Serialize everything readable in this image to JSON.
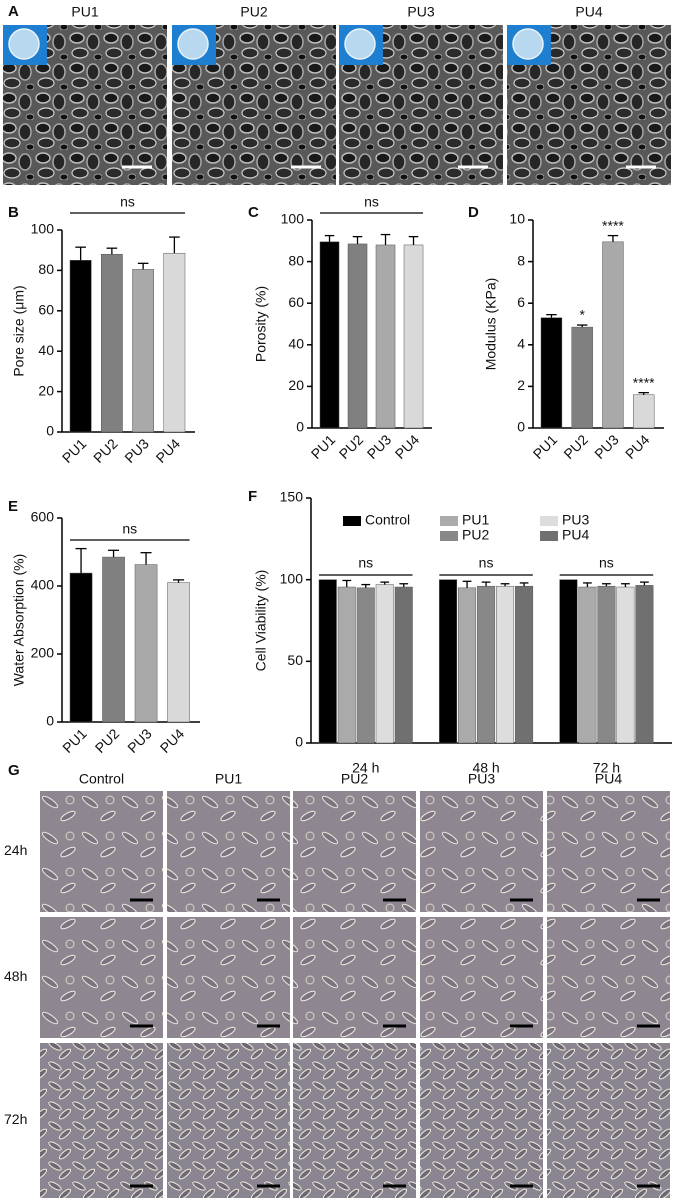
{
  "panel_labels": [
    "A",
    "B",
    "C",
    "D",
    "E",
    "F",
    "G"
  ],
  "sem_images": {
    "titles": [
      "PU1",
      "PU2",
      "PU3",
      "PU4"
    ]
  },
  "chart_data": [
    {
      "type": "bar",
      "ylabel": "Pore size (μm)",
      "categories": [
        "PU1",
        "PU2",
        "PU3",
        "PU4"
      ],
      "values": [
        85,
        88,
        80.5,
        88.5
      ],
      "errors": [
        6.5,
        3,
        3,
        8
      ],
      "colors": [
        "#000000",
        "#808080",
        "#a9a9a9",
        "#d9d9d9"
      ],
      "ylim": [
        0,
        100
      ],
      "yticks": [
        0,
        20,
        40,
        60,
        80,
        100
      ],
      "bracket_label": "ns"
    },
    {
      "type": "bar",
      "ylabel": "Porosity (%)",
      "categories": [
        "PU1",
        "PU2",
        "PU3",
        "PU4"
      ],
      "values": [
        89.5,
        88.5,
        88,
        88
      ],
      "errors": [
        3,
        3.5,
        5,
        4
      ],
      "colors": [
        "#000000",
        "#808080",
        "#a9a9a9",
        "#d9d9d9"
      ],
      "ylim": [
        0,
        100
      ],
      "yticks": [
        0,
        20,
        40,
        60,
        80,
        100
      ],
      "bracket_label": "ns"
    },
    {
      "type": "bar",
      "ylabel": "Modulus (KPa)",
      "categories": [
        "PU1",
        "PU2",
        "PU3",
        "PU4"
      ],
      "values": [
        5.3,
        4.85,
        8.95,
        1.6
      ],
      "errors": [
        0.15,
        0.1,
        0.3,
        0.1
      ],
      "colors": [
        "#000000",
        "#808080",
        "#a9a9a9",
        "#d9d9d9"
      ],
      "ylim": [
        0,
        10
      ],
      "yticks": [
        0,
        2,
        4,
        6,
        8,
        10
      ],
      "significance": [
        null,
        "*",
        "****",
        "****"
      ]
    },
    {
      "type": "bar",
      "ylabel": "Water Absorption (%)",
      "categories": [
        "PU1",
        "PU2",
        "PU3",
        "PU4"
      ],
      "values": [
        438,
        485,
        463,
        410
      ],
      "errors": [
        72,
        20,
        35,
        8
      ],
      "colors": [
        "#000000",
        "#808080",
        "#a9a9a9",
        "#d9d9d9"
      ],
      "ylim": [
        0,
        600
      ],
      "yticks": [
        0,
        200,
        400,
        600
      ],
      "bracket_label": "ns"
    },
    {
      "type": "grouped_bar",
      "ylabel": "Cell Viability (%)",
      "categories": [
        "24 h",
        "48 h",
        "72 h"
      ],
      "series": [
        {
          "name": "Control",
          "color": "#000000",
          "values": [
            100,
            100,
            100
          ],
          "errors": [
            0,
            0,
            0
          ]
        },
        {
          "name": "PU1",
          "color": "#aaaaaa",
          "values": [
            95.5,
            95,
            95.5
          ],
          "errors": [
            4,
            4,
            2.5
          ]
        },
        {
          "name": "PU2",
          "color": "#888888",
          "values": [
            95,
            96,
            96
          ],
          "errors": [
            2,
            2.5,
            1.5
          ]
        },
        {
          "name": "PU3",
          "color": "#dddddd",
          "values": [
            97,
            96,
            95.5
          ],
          "errors": [
            1.5,
            1.5,
            2
          ]
        },
        {
          "name": "PU4",
          "color": "#707070",
          "values": [
            95.5,
            96,
            96.5
          ],
          "errors": [
            2,
            2,
            2
          ]
        }
      ],
      "ylim": [
        0,
        150
      ],
      "yticks": [
        0,
        50,
        100,
        150
      ],
      "bracket_label": "ns"
    }
  ],
  "cell_images": {
    "columns": [
      "Control",
      "PU1",
      "PU2",
      "PU3",
      "PU4"
    ],
    "rows": [
      "24h",
      "48h",
      "72h"
    ]
  }
}
